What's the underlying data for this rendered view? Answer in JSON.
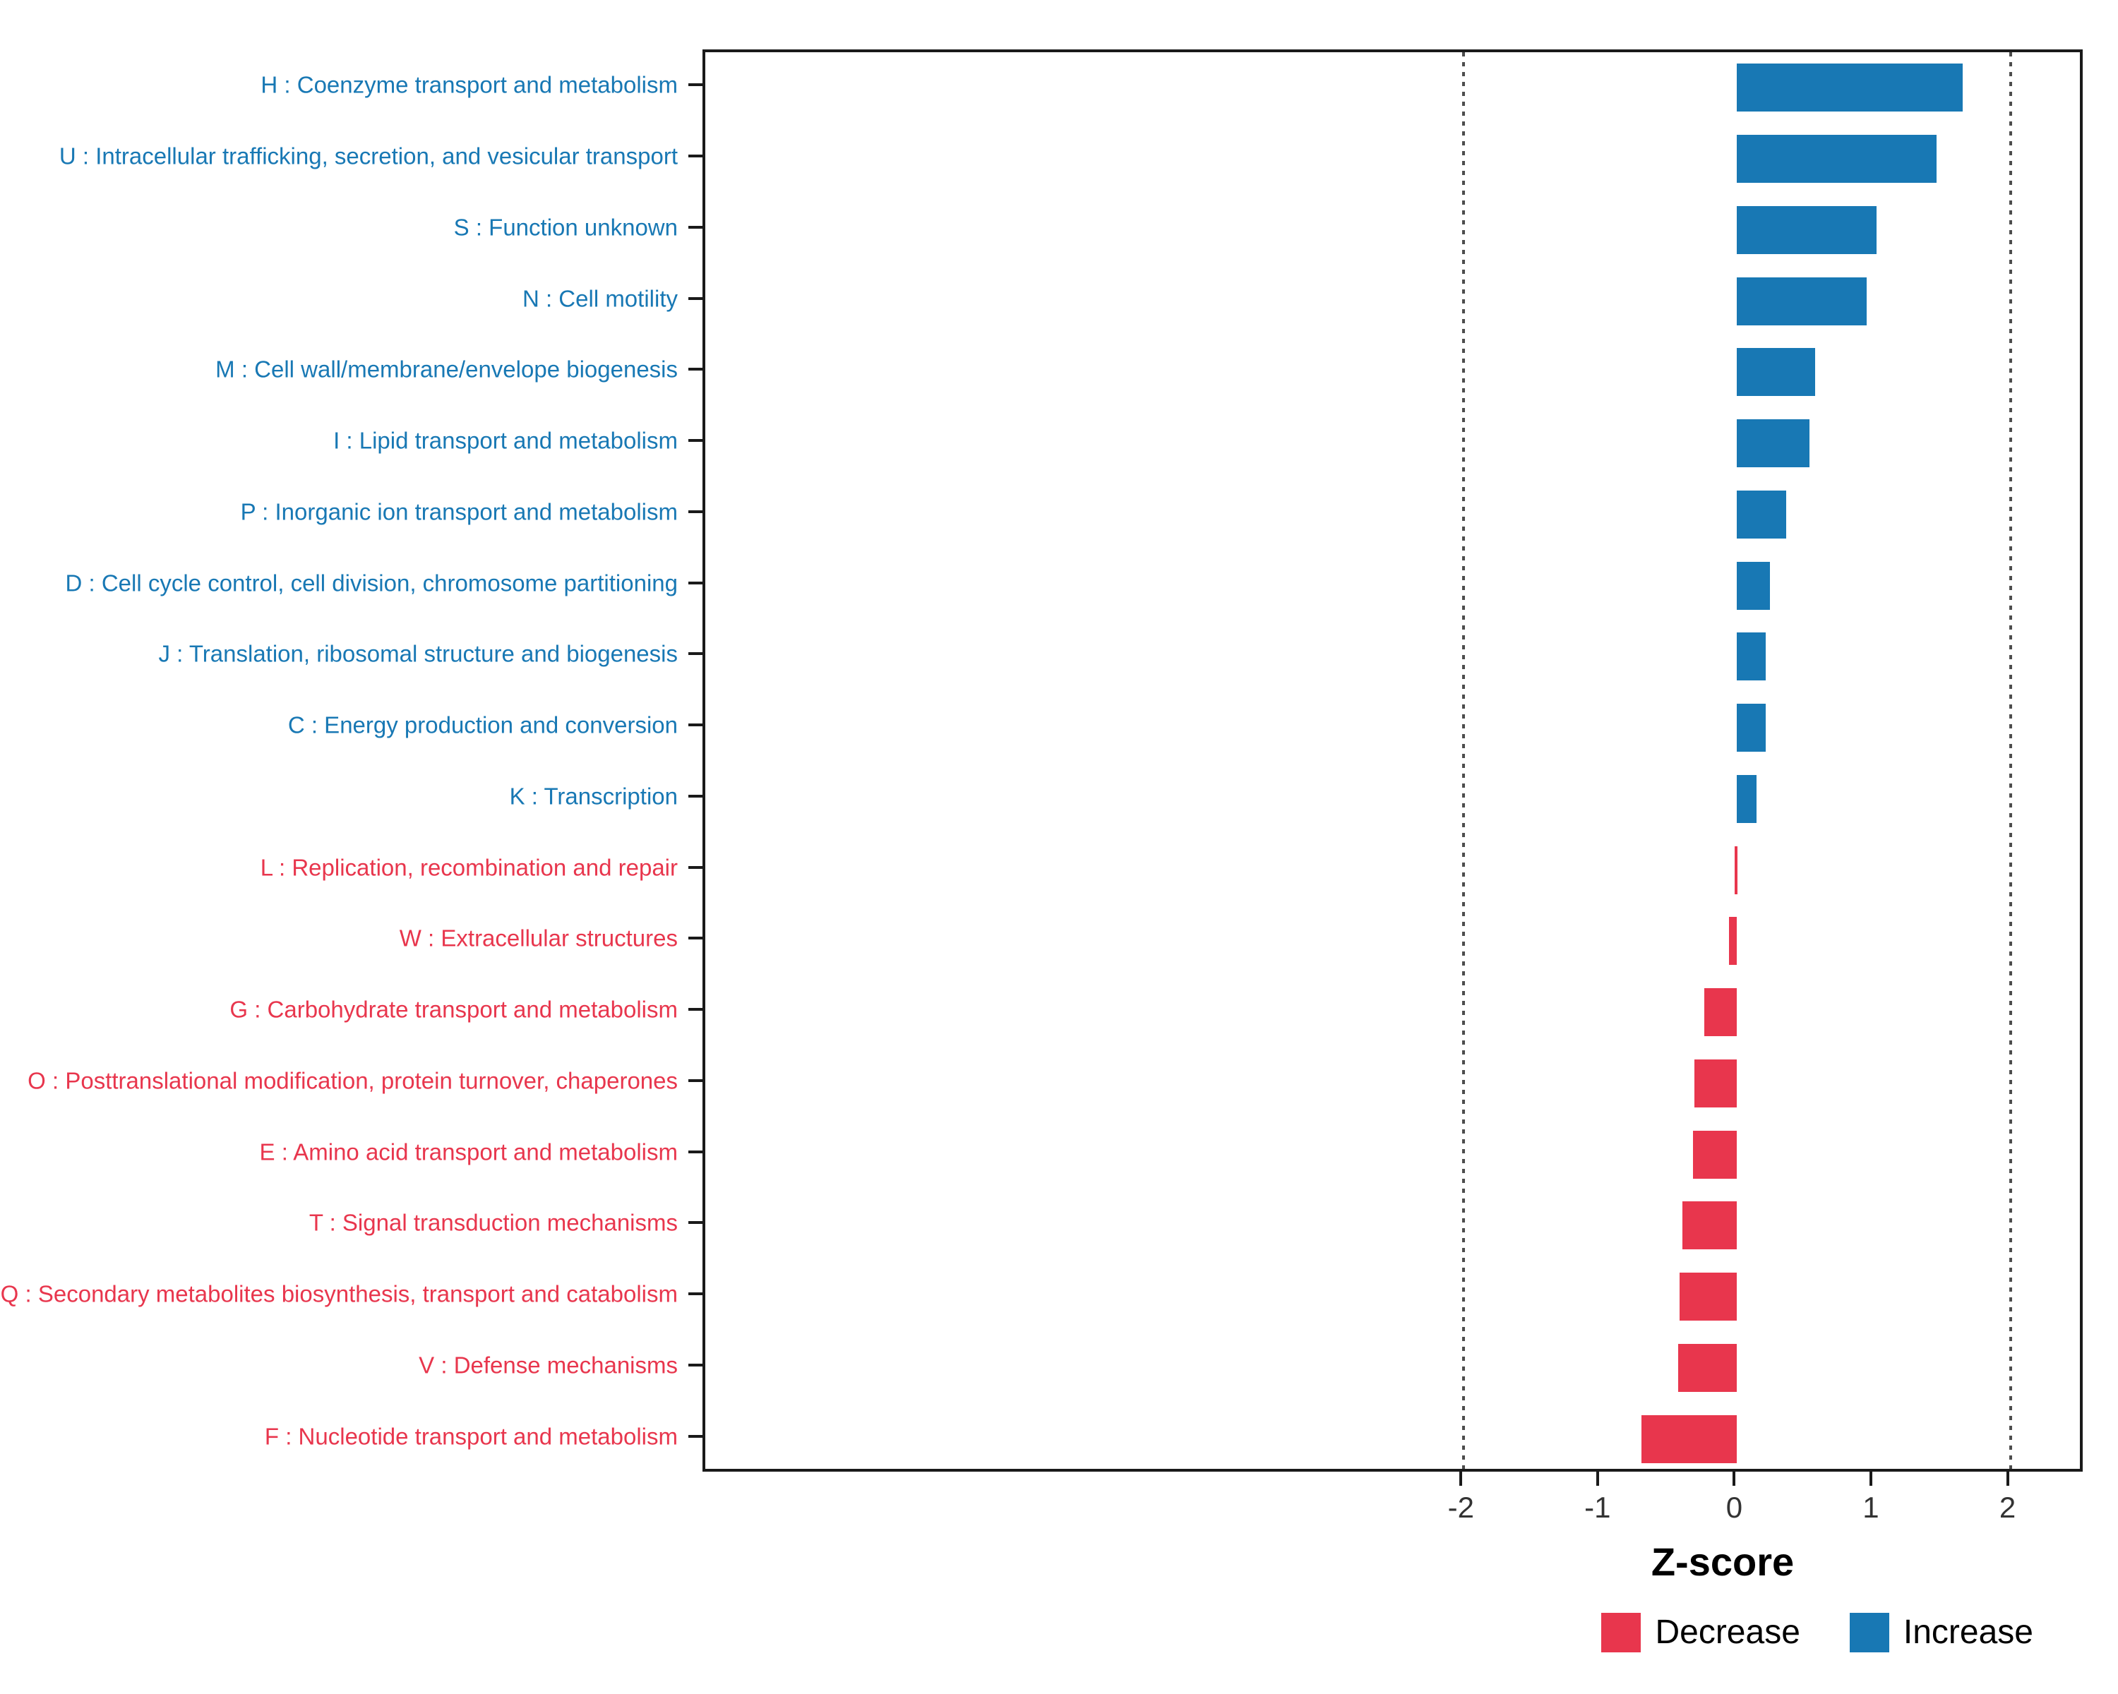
{
  "chart_data": {
    "type": "bar",
    "orientation": "horizontal",
    "title": "",
    "xlabel": "Z-score",
    "x_ticks": [
      -2,
      -1,
      0,
      1,
      2
    ],
    "xlim": [
      -7.55,
      2.55
    ],
    "reference_lines": [
      -2,
      2
    ],
    "grid": "off",
    "legend_position": "bottom-right",
    "categories": [
      "H : Coenzyme transport and metabolism",
      "U : Intracellular trafficking, secretion, and vesicular transport",
      "S : Function unknown",
      "N : Cell motility",
      "M : Cell wall/membrane/envelope biogenesis",
      "I : Lipid transport and metabolism",
      "P : Inorganic ion transport and metabolism",
      "D : Cell cycle control, cell division, chromosome partitioning",
      "J : Translation, ribosomal structure and biogenesis",
      "C : Energy production and conversion",
      "K : Transcription",
      "L : Replication, recombination and repair",
      "W : Extracellular structures",
      "G : Carbohydrate transport and metabolism",
      "O : Posttranslational modification, protein turnover, chaperones",
      "E : Amino acid transport and metabolism",
      "T : Signal transduction mechanisms",
      "Q : Secondary metabolites biosynthesis, transport and catabolism",
      "V : Defense mechanisms",
      "F : Nucleotide transport and metabolism"
    ],
    "values": [
      1.65,
      1.46,
      1.02,
      0.95,
      0.57,
      0.53,
      0.36,
      0.24,
      0.21,
      0.21,
      0.14,
      -0.02,
      -0.06,
      -0.24,
      -0.31,
      -0.32,
      -0.4,
      -0.42,
      -0.43,
      -0.7
    ],
    "colors": {
      "increase": "#1878B4",
      "decrease": "#E8364D",
      "reference_line": "#4D4D4D",
      "axis_text": "#333333"
    },
    "legend": [
      {
        "label": "Decrease",
        "color": "#E8364D"
      },
      {
        "label": "Increase",
        "color": "#1878B4"
      }
    ]
  }
}
